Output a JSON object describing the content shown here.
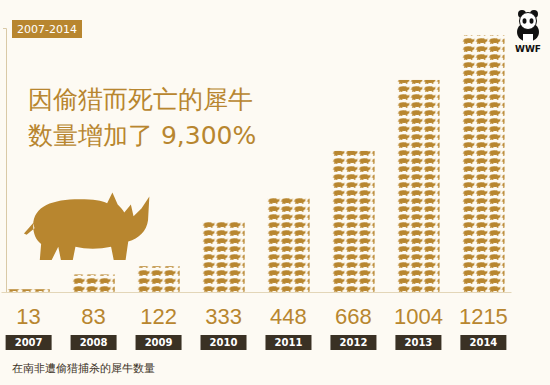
{
  "chart_data": {
    "type": "bar",
    "subtitle": "2007-2014",
    "title": [
      "因偷猎而死亡的犀牛",
      "数量增加了 9,300%"
    ],
    "x_label": "在南非遭偷猎捕杀的犀牛数量",
    "annotations": [
      "WWF"
    ],
    "categories": [
      "2007",
      "2008",
      "2009",
      "2010",
      "2011",
      "2012",
      "2013",
      "2014"
    ],
    "values": [
      13,
      83,
      122,
      333,
      448,
      668,
      1004,
      1215
    ],
    "color": "#b8862f",
    "ylim": [
      0,
      1250
    ],
    "yticks": [
      0,
      1250
    ],
    "grid": false,
    "data_labels": true,
    "tick_labels": "x"
  }
}
